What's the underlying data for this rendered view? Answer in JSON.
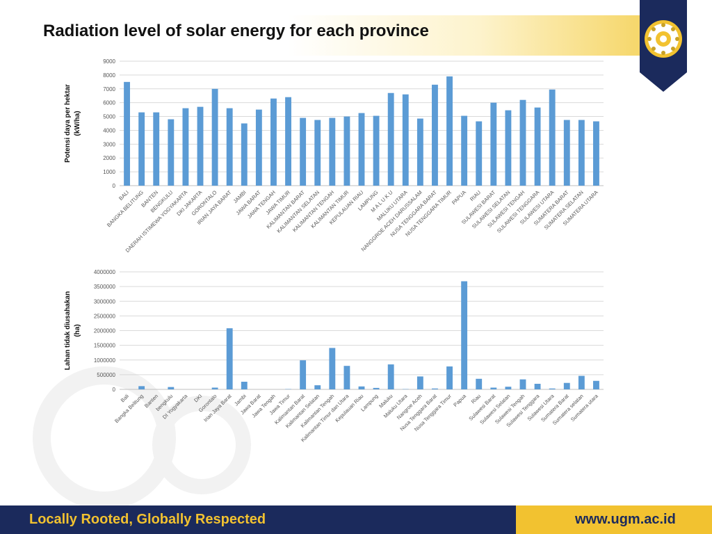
{
  "slide": {
    "title": "Radiation level of solar energy for each province",
    "footer_left": "Locally Rooted, Globally Respected",
    "footer_right": "www.ugm.ac.id",
    "logo_icon": "ugm-seal-icon",
    "colors": {
      "navy": "#1b2a5c",
      "gold": "#f2c230",
      "bar": "#5b9bd5"
    }
  },
  "chart_data": [
    {
      "type": "bar",
      "title": "",
      "ylabel_line1": "Potensi daya per hektar",
      "ylabel_line2": "(kW/ha)",
      "ylim": [
        0,
        9000
      ],
      "yticks": [
        "0",
        "1000",
        "2000",
        "3000",
        "4000",
        "5000",
        "6000",
        "7000",
        "8000",
        "9000"
      ],
      "grid": true,
      "categories": [
        "BALI",
        "BANGKA BELITUNG",
        "BANTEN",
        "BENGKULU",
        "DAERAH ISTIMEWA YOGYAKARTA",
        "DKI JAKARTA",
        "GORONTALO",
        "IRIAN JAYA BARAT",
        "JAMBI",
        "JAWA BARAT",
        "JAWA TENGAH",
        "JAWA TIMUR",
        "KALIMANTAN BARAT",
        "KALIMANTAN SELATAN",
        "KALIMANTAN TENGAH",
        "KALIMANTAN TIMUR",
        "KEPULAUAN RIAU",
        "LAMPUNG",
        "M A L U K U",
        "MALUKU UTARA",
        "NANGGROE ACEH DARUSSALAM",
        "NUSA TENGGARA BARAT",
        "NUSA TENGGARA TIMUR",
        "PAPUA",
        "RIAU",
        "SULAWESI BARAT",
        "SULAWESI SELATAN",
        "SULAWESI TENGAH",
        "SULAWESI TENGGARA",
        "SULAWESI UTARA",
        "SUMATERA BARAT",
        "SUMATERA SELATAN",
        "SUMATERA UTARA"
      ],
      "values": [
        7500,
        5300,
        5300,
        4800,
        5600,
        5700,
        7000,
        5600,
        4500,
        5500,
        6300,
        6400,
        4900,
        4750,
        4900,
        5000,
        5250,
        5050,
        6700,
        6600,
        4850,
        7300,
        7900,
        5050,
        4650,
        6000,
        5450,
        6200,
        5650,
        6950,
        4750,
        4750,
        4650
      ]
    },
    {
      "type": "bar",
      "title": "",
      "ylabel_line1": "Lahan tidak diusahakan",
      "ylabel_line2": "(ha)",
      "ylim": [
        0,
        4000000
      ],
      "yticks": [
        "0",
        "500000",
        "1000000",
        "1500000",
        "2000000",
        "2500000",
        "3000000",
        "3500000",
        "4000000"
      ],
      "grid": true,
      "categories": [
        "Bali",
        "Bangka Belitung",
        "Banten",
        "bengkulu",
        "DI Yogyakarta",
        "DKI",
        "Gorontalo",
        "Irian Jaya Barat",
        "Jambi",
        "Jawa Barat",
        "Jawa Tengah",
        "Jawa Timur",
        "Kalimantan Barat",
        "Kalimantan Selatan",
        "Kalimantan Tengah",
        "Kalimantan Timur dan Utara",
        "Kepulauan Riau",
        "Lampung",
        "Maluku",
        "Maluku Utara",
        "Nangroe Aceh",
        "Nusa Tenggara Barat",
        "Nusa Tenggara Timur",
        "Papua",
        "Riau",
        "Sulawesi Barat",
        "Sulawesi Selatan",
        "Sulawesi Tengah",
        "Sulawesi Tenggara",
        "Sulawesi Utara",
        "Sumatera Barat",
        "Sumatera selatan",
        "Sumatera utara"
      ],
      "values": [
        0,
        110000,
        0,
        80000,
        0,
        0,
        60000,
        2080000,
        260000,
        0,
        0,
        10000,
        990000,
        140000,
        1410000,
        800000,
        100000,
        50000,
        850000,
        10000,
        440000,
        30000,
        780000,
        3680000,
        360000,
        60000,
        90000,
        340000,
        190000,
        30000,
        220000,
        460000,
        290000
      ]
    }
  ]
}
